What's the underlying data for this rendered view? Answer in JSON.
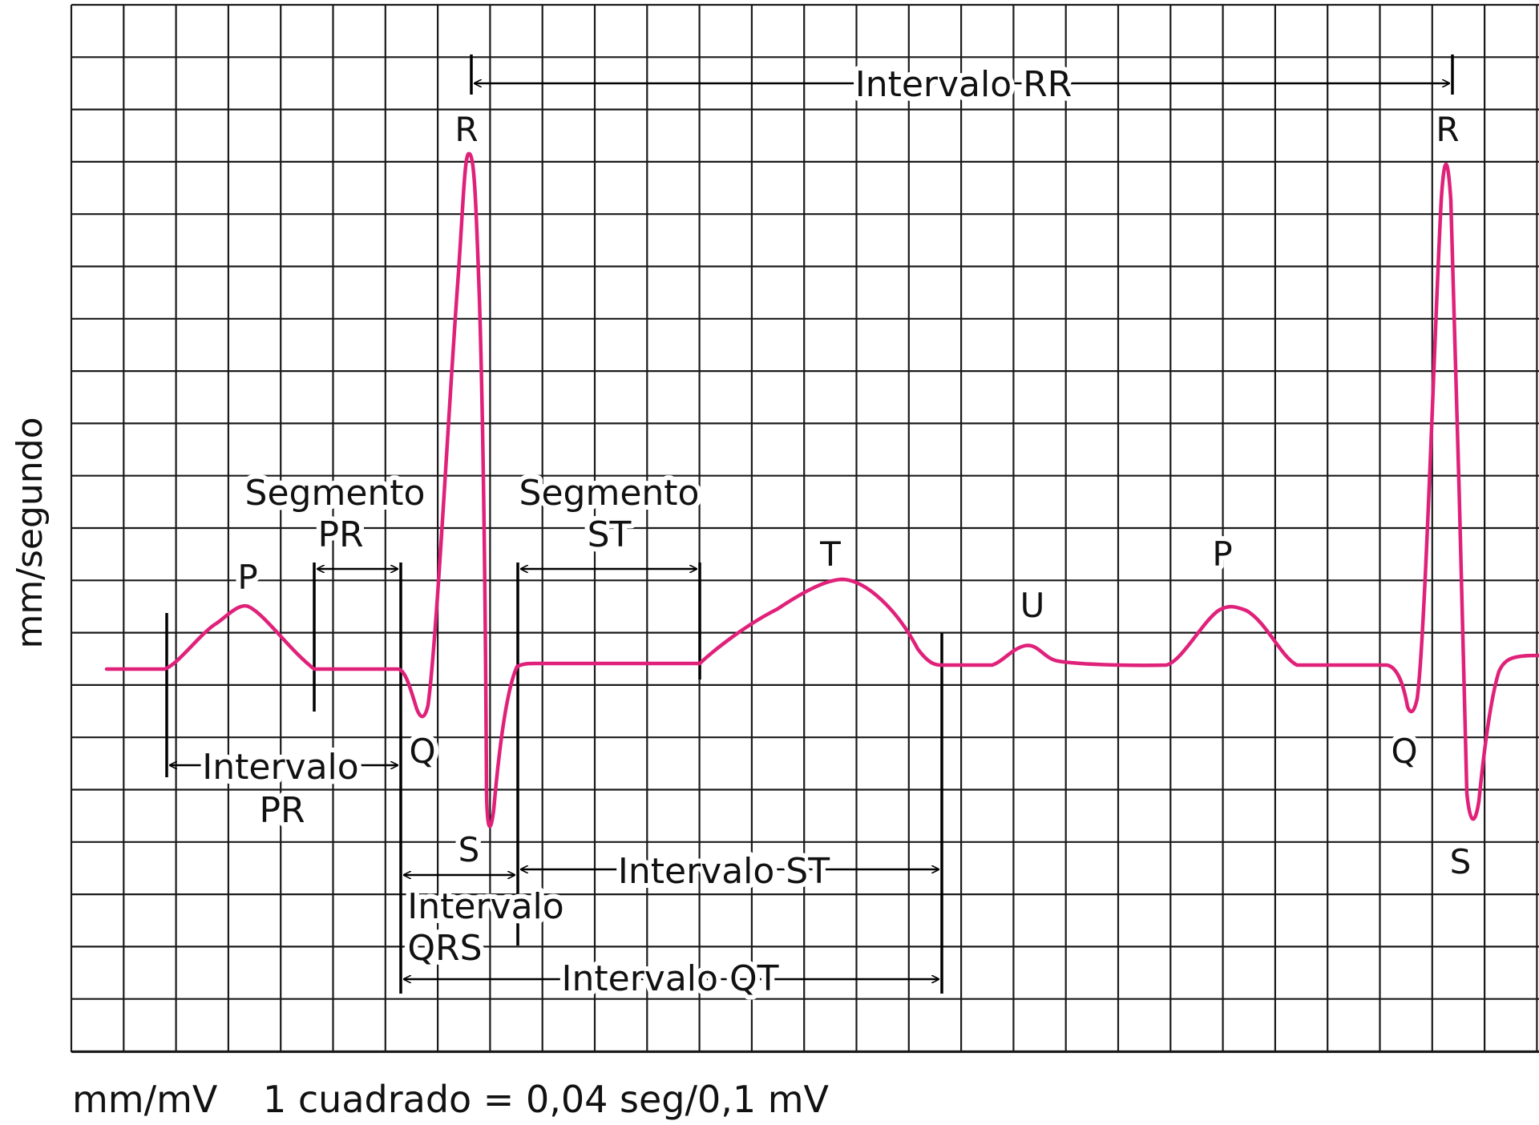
{
  "colors": {
    "trace": "#e0217a",
    "grid": "#1a1a1a",
    "background": "#ffffff"
  },
  "y_axis_label": "mm/segundo",
  "footer": {
    "units": "mm/mV",
    "scale": "1 cuadrado = 0,04 seg/0,1 mV"
  },
  "waves": {
    "p1": "P",
    "q1": "Q",
    "r1": "R",
    "s1": "S",
    "t": "T",
    "u": "U",
    "p2": "P",
    "q2": "Q",
    "r2": "R",
    "s2": "S"
  },
  "labels": {
    "rr": "Intervalo RR",
    "pr_segment_1": "Segmento",
    "pr_segment_2": "PR",
    "st_segment_1": "Segmento",
    "st_segment_2": "ST",
    "pr_interval_1": "Intervalo",
    "pr_interval_2": "PR",
    "qrs_interval_1": "Intervalo",
    "qrs_interval_2": "QRS",
    "st_interval": "Intervalo ST",
    "qt_interval": "Intervalo QT"
  }
}
